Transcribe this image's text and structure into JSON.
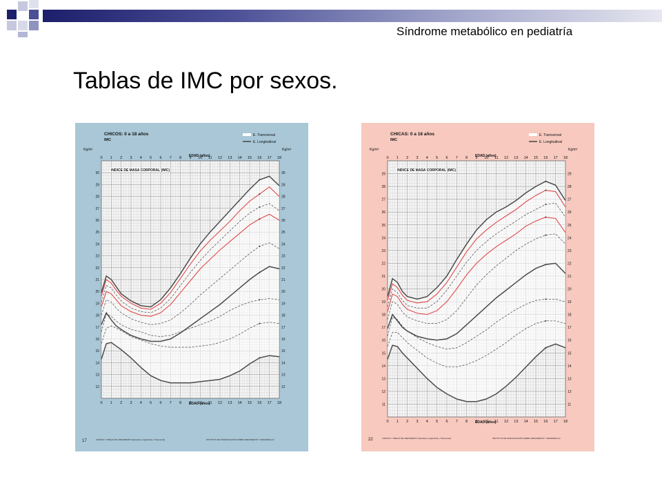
{
  "header": {
    "text": "Síndrome metabólico en pediatría"
  },
  "slide": {
    "title": "Tablas de IMC por sexos."
  },
  "colors": {
    "header_dark": "#1c1f6b",
    "header_mid": "#9ea2c8",
    "boys_bg": "#a9c7d6",
    "girls_bg": "#f7c9bf",
    "percentile_line": "#555555",
    "red_line": "#e04848"
  },
  "chart_data": [
    {
      "type": "line",
      "id": "boys",
      "title": "CHICOS: 0 a 18 años",
      "subtitle": "IMC",
      "legend": [
        "E. Transversal",
        "E. Longitudinal"
      ],
      "top_axis_label": "EDAD (años)",
      "bottom_axis_label": "EDAD (años)",
      "inner_label": "INDICE DE MASA CORPORAL (IMC)",
      "unit_label": "Kg/m²",
      "page_number": "17",
      "footer_left": "CURVAS Y TABLAS DE CRECIMIENTO (Estudios Longitudinal y Transversal)",
      "footer_right": "INSTITUTO DE INVESTIGACIÓN SOBRE CRECIMIENTO Y DESARROLLO",
      "x_ticks": [
        0,
        1,
        2,
        3,
        4,
        5,
        6,
        7,
        8,
        9,
        10,
        11,
        12,
        13,
        14,
        15,
        16,
        17,
        18
      ],
      "xlim": [
        0,
        18
      ],
      "ylim": [
        11,
        31
      ],
      "y_ticks": [
        12,
        13,
        14,
        15,
        16,
        17,
        18,
        19,
        20,
        21,
        22,
        23,
        24,
        25,
        26,
        27,
        28,
        29,
        30
      ],
      "grid": true,
      "x": [
        0,
        0.5,
        1,
        1.5,
        2,
        3,
        4,
        5,
        6,
        7,
        8,
        9,
        10,
        11,
        12,
        13,
        14,
        15,
        16,
        17,
        18
      ],
      "series": [
        {
          "values": [
            14.3,
            15.6,
            15.7,
            15.4,
            15.1,
            14.4,
            13.6,
            12.9,
            12.5,
            12.3,
            12.3,
            12.3,
            12.4,
            12.5,
            12.6,
            12.9,
            13.3,
            13.9,
            14.4,
            14.6,
            14.5
          ],
          "style": "dark"
        },
        {
          "values": [
            15.6,
            16.9,
            17.1,
            16.9,
            16.7,
            16.2,
            15.9,
            15.6,
            15.4,
            15.3,
            15.3,
            15.3,
            15.4,
            15.5,
            15.7,
            16.0,
            16.4,
            16.9,
            17.3,
            17.4,
            17.3
          ],
          "style": "dashed"
        },
        {
          "values": [
            16.6,
            18.1,
            17.9,
            17.5,
            17.2,
            16.8,
            16.6,
            16.3,
            16.2,
            16.3,
            16.6,
            16.9,
            17.2,
            17.5,
            17.9,
            18.4,
            18.8,
            19.1,
            19.3,
            19.4,
            19.3
          ],
          "style": "dashed"
        },
        {
          "values": [
            17.2,
            18.2,
            17.6,
            17.1,
            16.8,
            16.3,
            16.0,
            15.8,
            15.8,
            16.0,
            16.5,
            17.1,
            17.7,
            18.3,
            18.9,
            19.6,
            20.3,
            21.0,
            21.6,
            22.1,
            21.9
          ],
          "style": "dark"
        },
        {
          "values": [
            18.0,
            19.3,
            19.1,
            18.6,
            18.2,
            17.7,
            17.4,
            17.2,
            17.3,
            17.6,
            18.2,
            18.9,
            19.7,
            20.4,
            21.1,
            21.8,
            22.5,
            23.2,
            23.8,
            24.1,
            23.6
          ],
          "style": "dashed"
        },
        {
          "values": [
            18.7,
            20.0,
            19.8,
            19.3,
            18.8,
            18.3,
            18.0,
            17.9,
            18.2,
            18.9,
            19.9,
            20.9,
            21.9,
            22.7,
            23.5,
            24.2,
            24.9,
            25.6,
            26.1,
            26.5,
            26.0
          ],
          "style": "red"
        },
        {
          "values": [
            19.1,
            20.5,
            20.3,
            19.7,
            19.2,
            18.6,
            18.3,
            18.2,
            18.6,
            19.4,
            20.5,
            21.6,
            22.6,
            23.5,
            24.3,
            25.1,
            25.9,
            26.6,
            27.1,
            27.4,
            26.8
          ],
          "style": "dashed"
        },
        {
          "values": [
            19.6,
            21.0,
            20.7,
            20.1,
            19.6,
            19.0,
            18.6,
            18.5,
            19.0,
            19.9,
            21.1,
            22.3,
            23.4,
            24.3,
            25.1,
            25.9,
            26.8,
            27.6,
            28.2,
            28.8,
            28.0
          ],
          "style": "red"
        },
        {
          "values": [
            19.9,
            21.3,
            21.0,
            20.4,
            19.8,
            19.2,
            18.8,
            18.7,
            19.3,
            20.3,
            21.5,
            22.8,
            24.0,
            25.0,
            25.9,
            26.8,
            27.7,
            28.6,
            29.4,
            29.7,
            28.9
          ],
          "style": "dark"
        }
      ]
    },
    {
      "type": "line",
      "id": "girls",
      "title": "CHICAS: 0 a 18 años",
      "subtitle": "IMC",
      "legend": [
        "E. Transversal",
        "E. Longitudinal"
      ],
      "top_axis_label": "EDAD (años)",
      "bottom_axis_label": "EDAD (años)",
      "inner_label": "INDICE DE MASA CORPORAL (IMC)",
      "unit_label": "Kg/m²",
      "page_number": "22",
      "footer_left": "CURVAS Y TABLAS DE CRECIMIENTO (Estudios Longitudinal y Transversal)",
      "footer_right": "INSTITUTO DE INVESTIGACIÓN SOBRE CRECIMIENTO Y DESARROLLO",
      "x_ticks": [
        0,
        1,
        2,
        3,
        4,
        5,
        6,
        7,
        8,
        9,
        10,
        11,
        12,
        13,
        14,
        15,
        16,
        17,
        18
      ],
      "xlim": [
        0,
        18
      ],
      "ylim": [
        10,
        30
      ],
      "y_ticks": [
        11,
        12,
        13,
        14,
        15,
        16,
        17,
        18,
        19,
        20,
        21,
        22,
        23,
        24,
        25,
        26,
        27,
        28,
        29
      ],
      "grid": true,
      "x": [
        0,
        0.5,
        1,
        1.5,
        2,
        3,
        4,
        5,
        6,
        7,
        8,
        9,
        10,
        11,
        12,
        13,
        14,
        15,
        16,
        17,
        18
      ],
      "series": [
        {
          "values": [
            14.5,
            15.6,
            15.5,
            15.0,
            14.6,
            13.8,
            13.0,
            12.3,
            11.8,
            11.4,
            11.2,
            11.2,
            11.4,
            11.8,
            12.4,
            13.1,
            13.9,
            14.7,
            15.4,
            15.7,
            15.4
          ],
          "style": "dark"
        },
        {
          "values": [
            15.5,
            16.6,
            16.6,
            16.2,
            15.8,
            15.2,
            14.6,
            14.2,
            13.9,
            13.9,
            14.1,
            14.4,
            14.8,
            15.3,
            15.8,
            16.4,
            16.9,
            17.3,
            17.5,
            17.5,
            17.3
          ],
          "style": "dashed"
        },
        {
          "values": [
            16.3,
            17.8,
            17.6,
            17.1,
            16.7,
            16.2,
            15.8,
            15.5,
            15.3,
            15.4,
            15.8,
            16.3,
            16.8,
            17.4,
            17.9,
            18.4,
            18.8,
            19.1,
            19.2,
            19.2,
            19.0
          ],
          "style": "dashed"
        },
        {
          "values": [
            16.9,
            18.0,
            17.5,
            17.0,
            16.7,
            16.3,
            16.1,
            16.0,
            16.1,
            16.5,
            17.2,
            17.9,
            18.6,
            19.3,
            19.9,
            20.5,
            21.1,
            21.6,
            21.9,
            22.0,
            21.2
          ],
          "style": "dark"
        },
        {
          "values": [
            17.6,
            19.0,
            18.8,
            18.2,
            17.8,
            17.5,
            17.3,
            17.3,
            17.6,
            18.3,
            19.3,
            20.3,
            21.1,
            21.8,
            22.4,
            23.0,
            23.5,
            23.9,
            24.2,
            24.3,
            23.5
          ],
          "style": "dashed"
        },
        {
          "values": [
            18.2,
            19.6,
            19.4,
            18.8,
            18.4,
            18.1,
            18.0,
            18.3,
            19.0,
            20.0,
            21.1,
            22.0,
            22.7,
            23.3,
            23.8,
            24.3,
            24.9,
            25.3,
            25.6,
            25.5,
            24.4
          ],
          "style": "red"
        },
        {
          "values": [
            18.6,
            20.0,
            19.7,
            19.1,
            18.7,
            18.5,
            18.5,
            19.0,
            19.9,
            21.0,
            22.1,
            23.0,
            23.7,
            24.3,
            24.8,
            25.3,
            25.8,
            26.2,
            26.6,
            26.7,
            25.6
          ],
          "style": "dashed"
        },
        {
          "values": [
            19.1,
            20.4,
            20.1,
            19.5,
            19.1,
            18.9,
            19.0,
            19.6,
            20.5,
            21.7,
            22.9,
            23.9,
            24.6,
            25.2,
            25.7,
            26.2,
            26.8,
            27.3,
            27.7,
            27.6,
            26.4
          ],
          "style": "red"
        },
        {
          "values": [
            19.4,
            20.8,
            20.5,
            19.8,
            19.4,
            19.2,
            19.4,
            20.1,
            21.0,
            22.3,
            23.5,
            24.6,
            25.4,
            26.0,
            26.4,
            26.9,
            27.5,
            28.0,
            28.4,
            28.1,
            26.9
          ],
          "style": "dark"
        }
      ]
    }
  ]
}
